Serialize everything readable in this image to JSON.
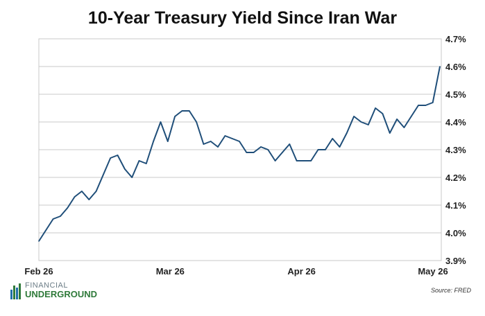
{
  "chart_data": {
    "type": "line",
    "title": "10-Year Treasury Yield Since Iran War",
    "xlabel": "",
    "ylabel": "",
    "x_tick_labels": [
      "Feb 26",
      "Mar 26",
      "Apr 26",
      "May 26"
    ],
    "y_tick_labels": [
      "3.9%",
      "4.0%",
      "4.1%",
      "4.2%",
      "4.3%",
      "4.4%",
      "4.5%",
      "4.6%",
      "4.7%"
    ],
    "ylim": [
      3.9,
      4.7
    ],
    "grid": true,
    "line_color": "#1f4e79",
    "series": [
      {
        "values": [
          3.97,
          4.01,
          4.05,
          4.06,
          4.09,
          4.13,
          4.15,
          4.12,
          4.15,
          4.21,
          4.27,
          4.28,
          4.23,
          4.2,
          4.26,
          4.25,
          4.33,
          4.4,
          4.33,
          4.42,
          4.44,
          4.44,
          4.4,
          4.32,
          4.33,
          4.31,
          4.35,
          4.34,
          4.33,
          4.29,
          4.29,
          4.31,
          4.3,
          4.26,
          4.29,
          4.32,
          4.26,
          4.26,
          4.26,
          4.3,
          4.3,
          4.34,
          4.31,
          4.36,
          4.42,
          4.4,
          4.39,
          4.45,
          4.43,
          4.36,
          4.41,
          4.38,
          4.42,
          4.46,
          4.46,
          4.47,
          4.6
        ]
      }
    ]
  },
  "branding": {
    "logo_line1": "FINANCIAL",
    "logo_line2": "UNDERGROUND",
    "source": "Source: FRED"
  }
}
